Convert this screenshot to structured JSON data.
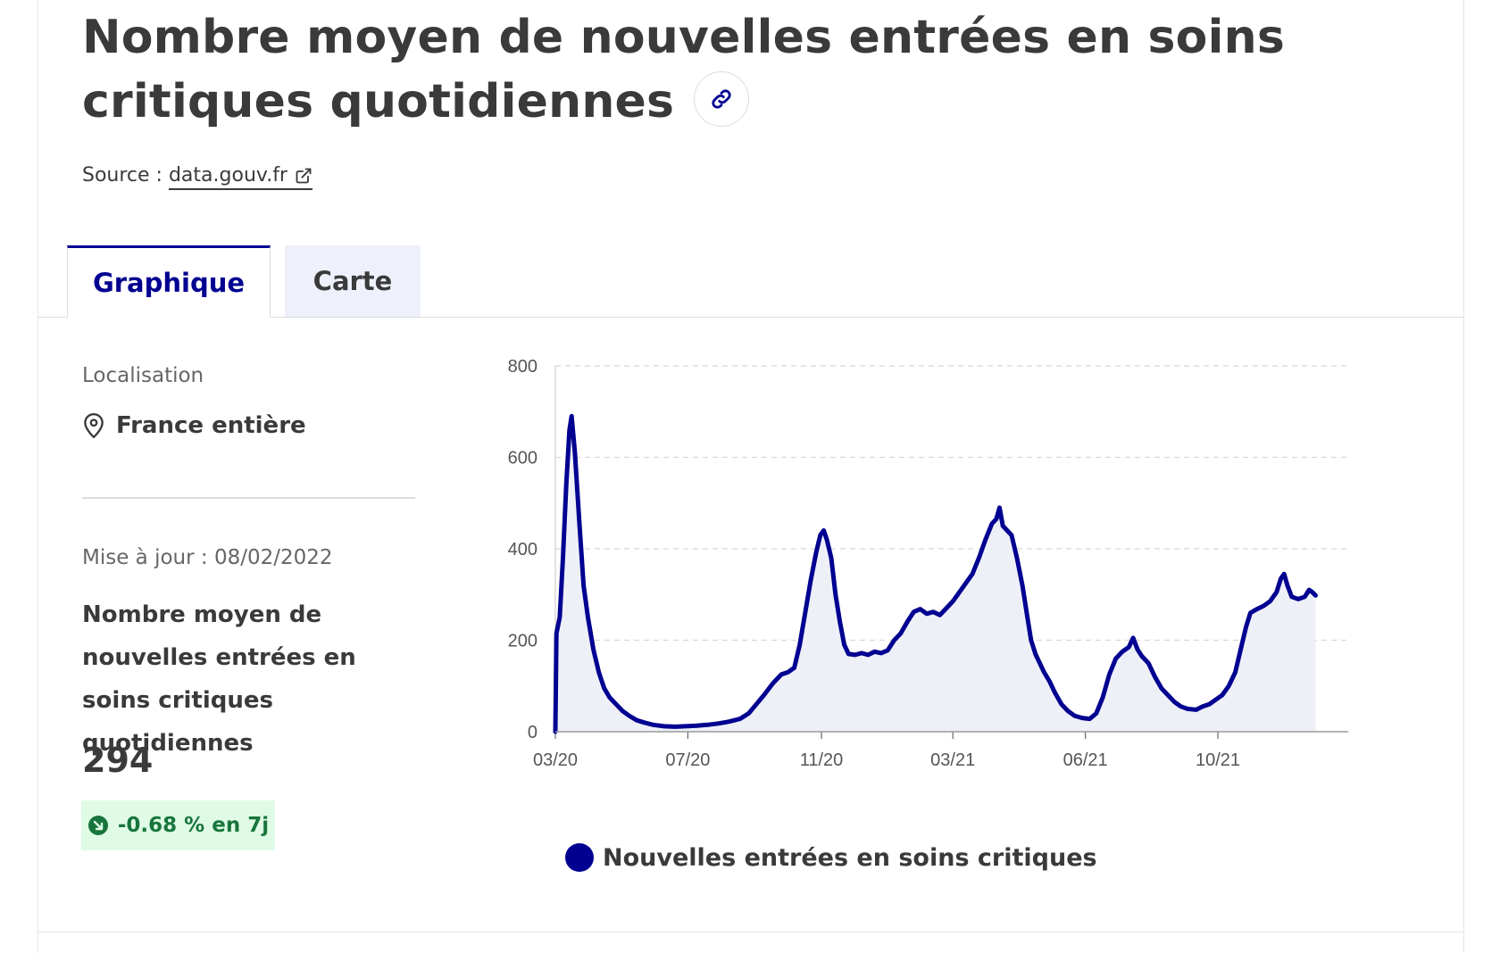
{
  "header": {
    "title": "Nombre moyen de nouvelles entrées en soins critiques quotidiennes",
    "link_icon": "link-icon",
    "source_prefix": "Source : ",
    "source_link": "data.gouv.fr",
    "external_icon": "external-link-icon"
  },
  "tabs": [
    {
      "label": "Graphique",
      "active": true
    },
    {
      "label": "Carte",
      "active": false
    }
  ],
  "sidebar": {
    "location_label": "Localisation",
    "location_value": "France entière",
    "location_icon": "map-pin-icon",
    "update_text": "Mise à jour : 08/02/2022",
    "indicator_title": "Nombre moyen de nouvelles entrées en soins critiques quotidiennes",
    "indicator_value": "294",
    "trend_text": "-0.68 % en 7j",
    "trend_icon": "arrow-down-right-icon"
  },
  "colors": {
    "accent": "#000091",
    "area_fill": "#eef0f8",
    "badge_bg": "#dffbe6",
    "badge_text": "#18753c"
  },
  "chart_data": {
    "type": "area",
    "x_tick_labels": [
      "03/20",
      "07/20",
      "11/20",
      "03/21",
      "06/21",
      "10/21"
    ],
    "x_tick_days": [
      0,
      122,
      245,
      366,
      488,
      610
    ],
    "y_ticks": [
      0,
      200,
      400,
      600,
      800
    ],
    "ylim": [
      0,
      800
    ],
    "xlim_days": [
      0,
      730
    ],
    "grid": "horizontal-dashed",
    "legend_position": "bottom",
    "series": [
      {
        "name": "Nouvelles entrées en soins critiques",
        "points": [
          [
            0,
            0
          ],
          [
            1,
            215
          ],
          [
            4,
            250
          ],
          [
            7,
            380
          ],
          [
            10,
            540
          ],
          [
            13,
            660
          ],
          [
            15,
            690
          ],
          [
            18,
            610
          ],
          [
            22,
            460
          ],
          [
            26,
            320
          ],
          [
            30,
            250
          ],
          [
            35,
            180
          ],
          [
            40,
            130
          ],
          [
            45,
            95
          ],
          [
            50,
            75
          ],
          [
            56,
            60
          ],
          [
            62,
            45
          ],
          [
            68,
            35
          ],
          [
            75,
            25
          ],
          [
            82,
            20
          ],
          [
            90,
            15
          ],
          [
            100,
            12
          ],
          [
            110,
            11
          ],
          [
            120,
            12
          ],
          [
            130,
            13
          ],
          [
            140,
            15
          ],
          [
            150,
            18
          ],
          [
            160,
            22
          ],
          [
            170,
            28
          ],
          [
            178,
            40
          ],
          [
            185,
            60
          ],
          [
            192,
            80
          ],
          [
            200,
            105
          ],
          [
            208,
            125
          ],
          [
            214,
            130
          ],
          [
            220,
            140
          ],
          [
            225,
            190
          ],
          [
            230,
            260
          ],
          [
            235,
            330
          ],
          [
            240,
            390
          ],
          [
            244,
            430
          ],
          [
            247,
            440
          ],
          [
            250,
            420
          ],
          [
            254,
            380
          ],
          [
            258,
            300
          ],
          [
            262,
            240
          ],
          [
            266,
            190
          ],
          [
            270,
            170
          ],
          [
            276,
            168
          ],
          [
            282,
            172
          ],
          [
            288,
            168
          ],
          [
            294,
            175
          ],
          [
            300,
            172
          ],
          [
            306,
            178
          ],
          [
            312,
            200
          ],
          [
            318,
            215
          ],
          [
            324,
            240
          ],
          [
            330,
            262
          ],
          [
            336,
            268
          ],
          [
            342,
            258
          ],
          [
            348,
            262
          ],
          [
            354,
            255
          ],
          [
            360,
            270
          ],
          [
            366,
            285
          ],
          [
            372,
            305
          ],
          [
            378,
            325
          ],
          [
            384,
            345
          ],
          [
            390,
            380
          ],
          [
            396,
            420
          ],
          [
            402,
            455
          ],
          [
            406,
            465
          ],
          [
            409,
            490
          ],
          [
            412,
            450
          ],
          [
            416,
            440
          ],
          [
            420,
            430
          ],
          [
            425,
            380
          ],
          [
            430,
            320
          ],
          [
            434,
            260
          ],
          [
            438,
            200
          ],
          [
            442,
            170
          ],
          [
            446,
            150
          ],
          [
            450,
            130
          ],
          [
            455,
            110
          ],
          [
            460,
            85
          ],
          [
            466,
            60
          ],
          [
            472,
            45
          ],
          [
            478,
            35
          ],
          [
            485,
            30
          ],
          [
            492,
            28
          ],
          [
            498,
            40
          ],
          [
            504,
            75
          ],
          [
            510,
            125
          ],
          [
            516,
            160
          ],
          [
            522,
            175
          ],
          [
            528,
            185
          ],
          [
            532,
            205
          ],
          [
            536,
            180
          ],
          [
            540,
            165
          ],
          [
            546,
            150
          ],
          [
            552,
            120
          ],
          [
            558,
            95
          ],
          [
            564,
            80
          ],
          [
            570,
            65
          ],
          [
            576,
            55
          ],
          [
            582,
            50
          ],
          [
            590,
            48
          ],
          [
            596,
            55
          ],
          [
            602,
            60
          ],
          [
            608,
            70
          ],
          [
            614,
            80
          ],
          [
            620,
            100
          ],
          [
            626,
            130
          ],
          [
            632,
            190
          ],
          [
            636,
            230
          ],
          [
            640,
            260
          ],
          [
            646,
            268
          ],
          [
            652,
            275
          ],
          [
            658,
            285
          ],
          [
            664,
            305
          ],
          [
            668,
            335
          ],
          [
            671,
            345
          ],
          [
            674,
            320
          ],
          [
            678,
            295
          ],
          [
            684,
            290
          ],
          [
            690,
            295
          ],
          [
            694,
            310
          ],
          [
            697,
            305
          ],
          [
            700,
            298
          ]
        ]
      }
    ]
  }
}
